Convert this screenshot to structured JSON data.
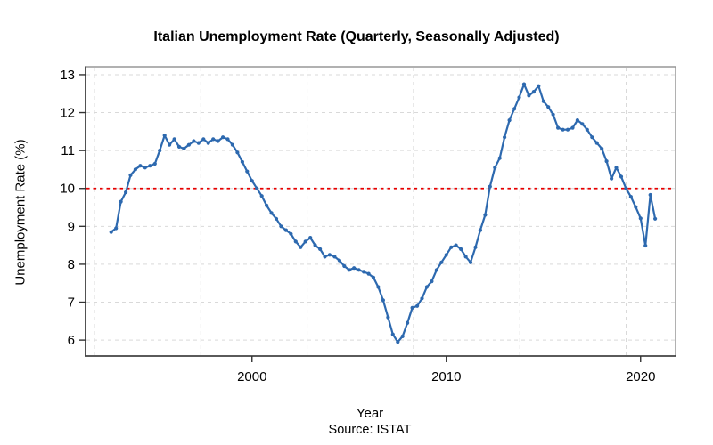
{
  "page": {
    "background": "#ffffff"
  },
  "chart_data": {
    "type": "line",
    "title": "Italian Unemployment Rate (Quarterly, Seasonally Adjusted)",
    "xlabel": "Year",
    "ylabel": "Unemployment Rate (%)",
    "source_note": "Source: ISTAT",
    "frequency": "quarterly",
    "seasonally_adjusted": true,
    "x_start": "1992-Q4",
    "x_end": "2020-Q4",
    "x_ticks": [
      2000,
      2010,
      2020
    ],
    "y_ticks": [
      6,
      7,
      8,
      9,
      10,
      11,
      12,
      13
    ],
    "ylim": [
      5.58,
      13.21
    ],
    "grid": true,
    "legend": "none",
    "reference_line": {
      "value": 10,
      "style": "dotted",
      "color": "#e60000"
    },
    "series": [
      {
        "name": "Unemployment rate (%)",
        "color": "#2d69af",
        "marker": "circle",
        "values": [
          8.85,
          8.95,
          9.65,
          9.9,
          10.35,
          10.5,
          10.6,
          10.55,
          10.6,
          10.65,
          11.0,
          11.4,
          11.15,
          11.3,
          11.1,
          11.05,
          11.15,
          11.25,
          11.2,
          11.3,
          11.2,
          11.3,
          11.25,
          11.35,
          11.3,
          11.15,
          10.95,
          10.7,
          10.45,
          10.2,
          10.0,
          9.8,
          9.55,
          9.35,
          9.2,
          9.0,
          8.9,
          8.8,
          8.6,
          8.45,
          8.6,
          8.7,
          8.5,
          8.4,
          8.2,
          8.25,
          8.2,
          8.1,
          7.95,
          7.85,
          7.9,
          7.85,
          7.8,
          7.75,
          7.65,
          7.4,
          7.05,
          6.6,
          6.15,
          5.95,
          6.1,
          6.45,
          6.85,
          6.9,
          7.1,
          7.4,
          7.55,
          7.85,
          8.05,
          8.25,
          8.45,
          8.5,
          8.4,
          8.2,
          8.05,
          8.45,
          8.9,
          9.3,
          10.05,
          10.55,
          10.8,
          11.35,
          11.8,
          12.1,
          12.4,
          12.75,
          12.45,
          12.55,
          12.7,
          12.3,
          12.15,
          11.95,
          11.6,
          11.55,
          11.55,
          11.6,
          11.8,
          11.7,
          11.55,
          11.35,
          11.2,
          11.05,
          10.72,
          10.26,
          10.55,
          10.31,
          10.0,
          9.78,
          9.51,
          9.21,
          8.49,
          9.83,
          9.2
        ]
      }
    ]
  },
  "style": {
    "line_color": "#2d69af",
    "reference_color": "#e60000",
    "grid_color": "#d9d9d9",
    "axis_color": "#333333",
    "box_color": "#909090",
    "text_color": "#000000"
  }
}
